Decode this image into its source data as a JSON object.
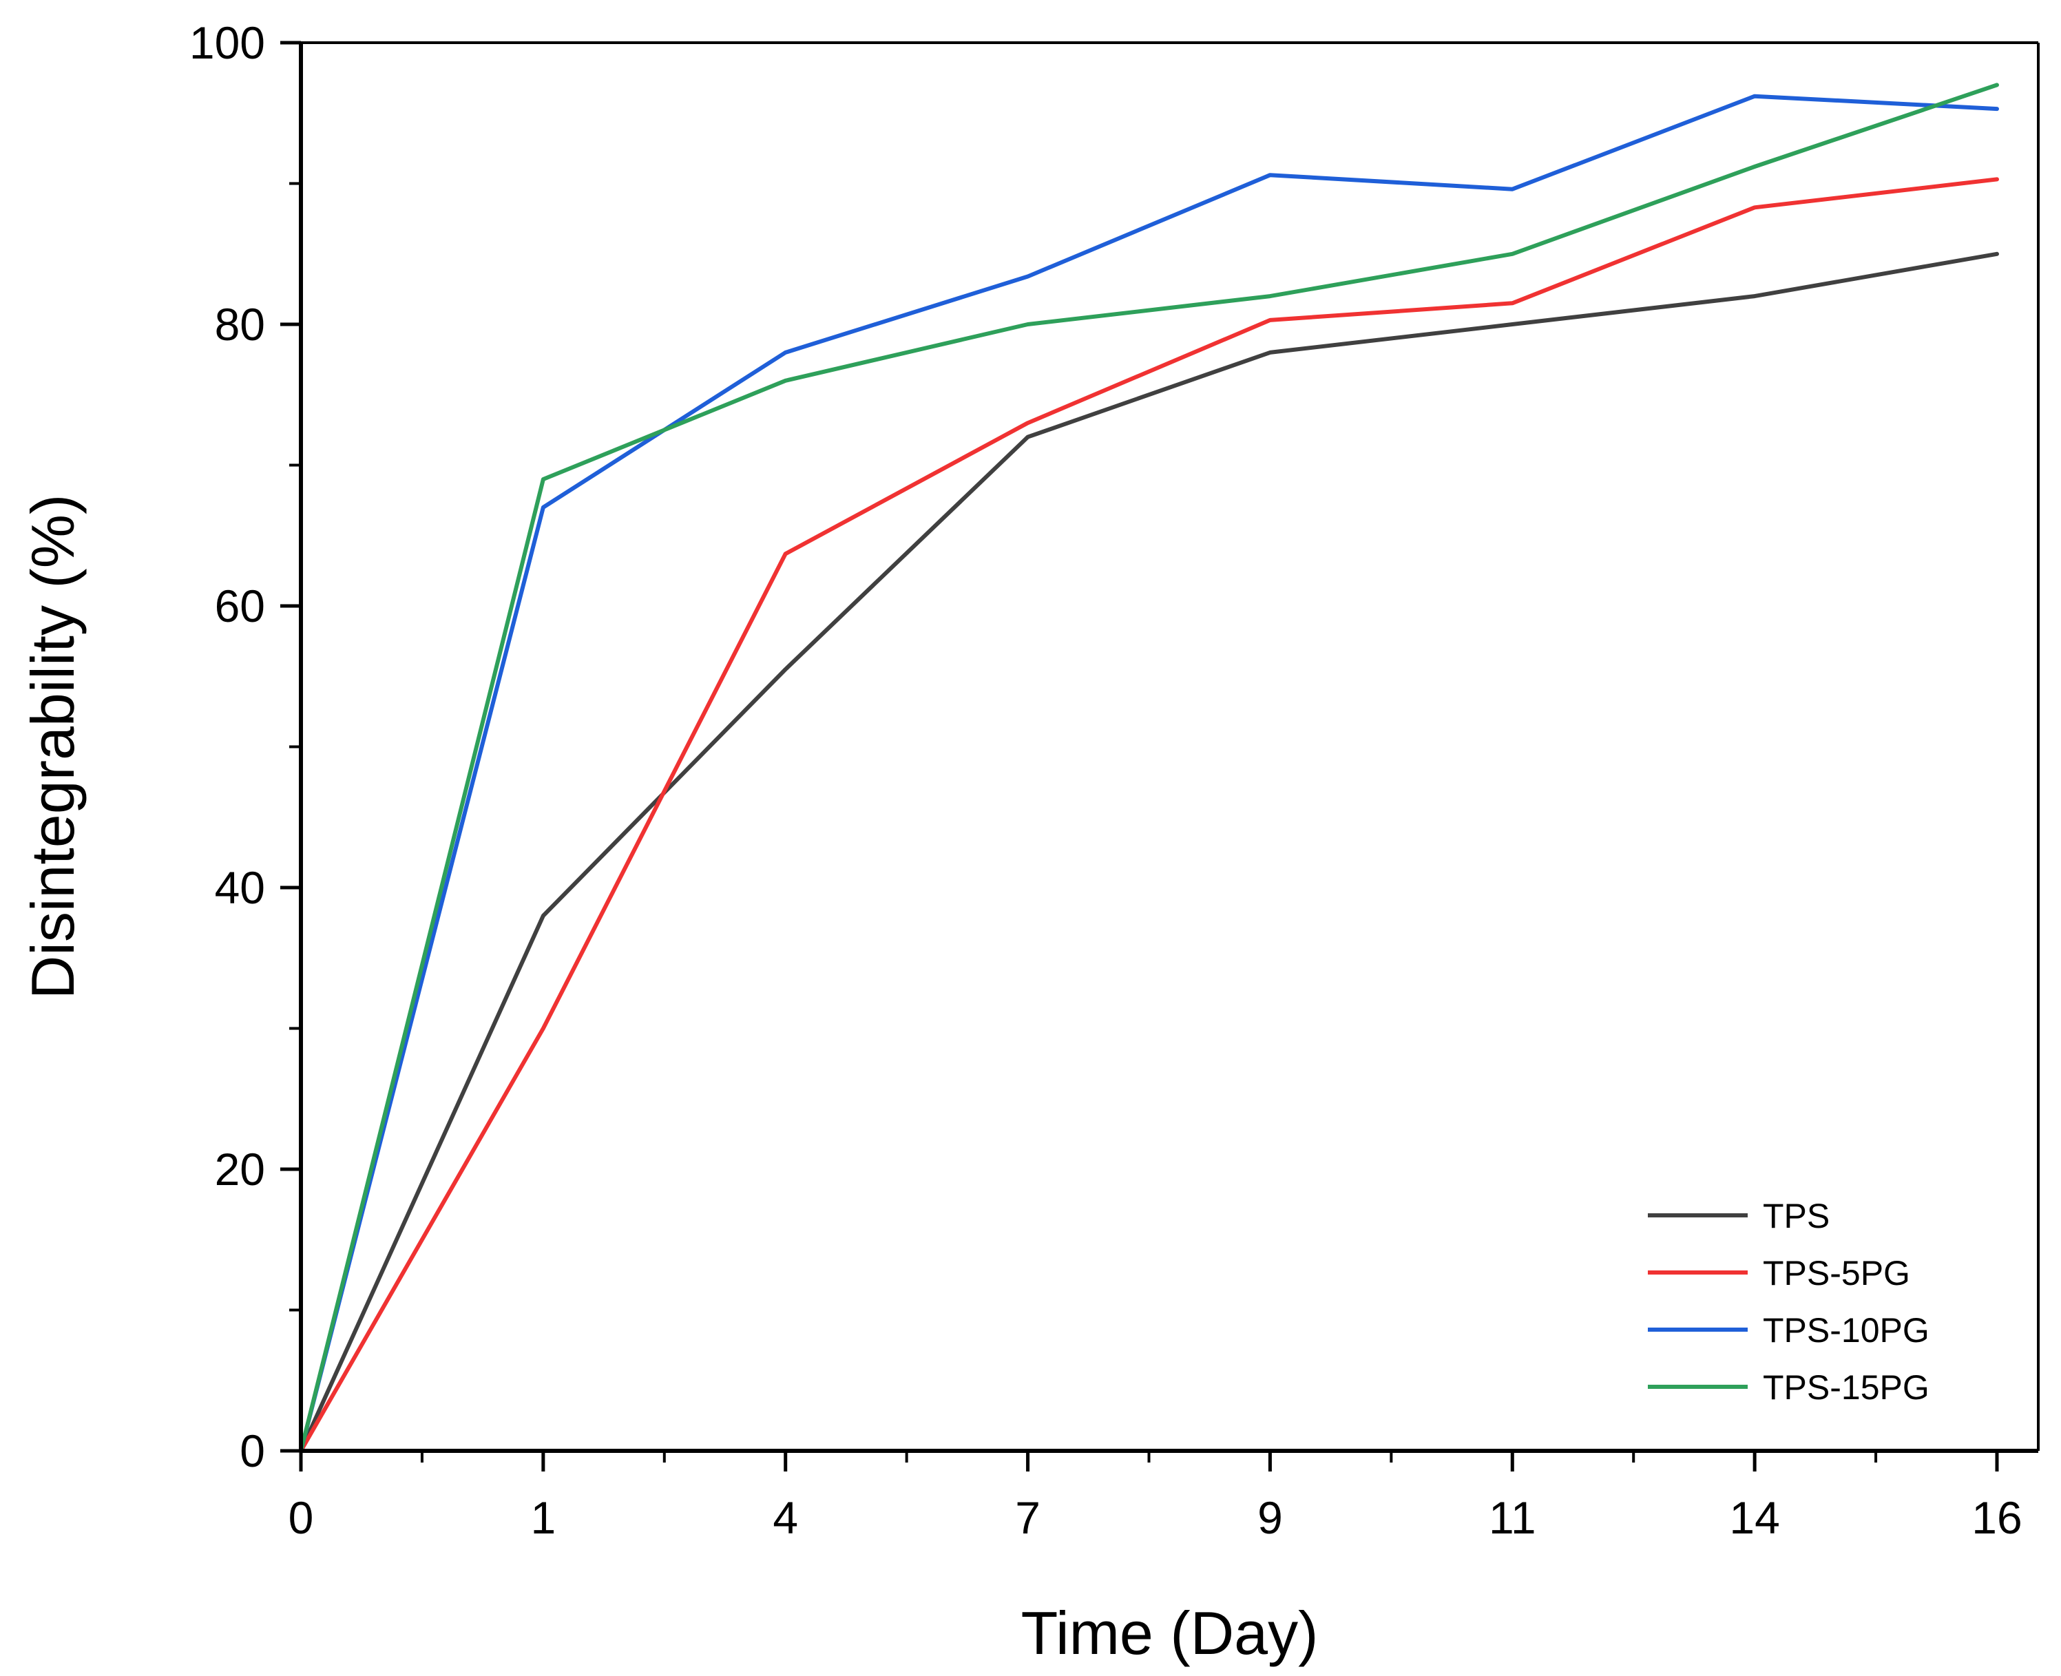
{
  "chart_data": {
    "type": "line",
    "title": "",
    "xlabel": "Time (Day)",
    "ylabel": "Disintegrability (%)",
    "categories": [
      "0",
      "1",
      "4",
      "7",
      "9",
      "11",
      "14",
      "16"
    ],
    "ylim": [
      0,
      100
    ],
    "yticks": [
      "0",
      "20",
      "40",
      "60",
      "80",
      "100"
    ],
    "legend_position": "bottom-right",
    "series": [
      {
        "name": "TPS",
        "color": "#404040",
        "values": [
          0,
          38,
          55.5,
          72,
          78,
          80,
          82,
          85
        ]
      },
      {
        "name": "TPS-5PG",
        "color": "#f03232",
        "values": [
          0,
          30,
          63.7,
          73,
          80.3,
          81.5,
          88.3,
          90.3
        ]
      },
      {
        "name": "TPS-10PG",
        "color": "#1f5fd8",
        "values": [
          0,
          67,
          78,
          83.4,
          90.6,
          89.6,
          96.2,
          95.3
        ]
      },
      {
        "name": "TPS-15PG",
        "color": "#2ea05a",
        "values": [
          0,
          69,
          76,
          80,
          82,
          85,
          91.2,
          97
        ]
      }
    ]
  }
}
